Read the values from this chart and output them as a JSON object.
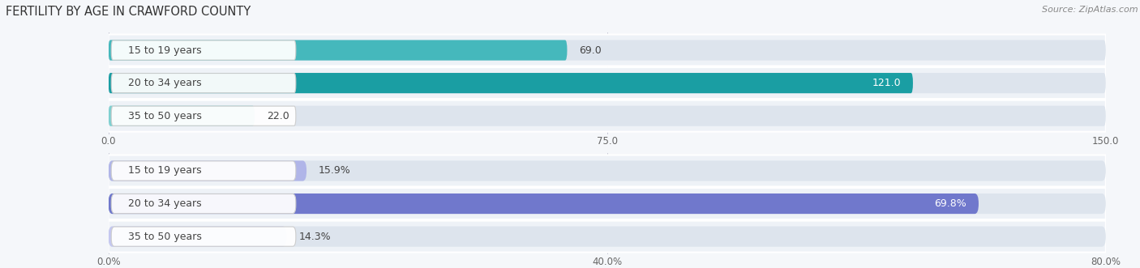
{
  "title": "FERTILITY BY AGE IN CRAWFORD COUNTY",
  "source": "Source: ZipAtlas.com",
  "top_bars": {
    "categories": [
      "15 to 19 years",
      "20 to 34 years",
      "35 to 50 years"
    ],
    "values": [
      69.0,
      121.0,
      22.0
    ],
    "xlim": [
      0,
      150
    ],
    "xticks": [
      0.0,
      75.0,
      150.0
    ],
    "xtick_labels": [
      "0.0",
      "75.0",
      "150.0"
    ],
    "bar_colors": [
      "#45b8bc",
      "#1a9ea3",
      "#7fd0d0"
    ],
    "value_inside": [
      false,
      true,
      false
    ],
    "value_colors_inside": [
      "#333333",
      "#ffffff",
      "#333333"
    ]
  },
  "bottom_bars": {
    "categories": [
      "15 to 19 years",
      "20 to 34 years",
      "35 to 50 years"
    ],
    "values": [
      15.9,
      69.8,
      14.3
    ],
    "xlim": [
      0,
      80
    ],
    "xticks": [
      0.0,
      40.0,
      80.0
    ],
    "xtick_labels": [
      "0.0%",
      "40.0%",
      "80.0%"
    ],
    "bar_colors": [
      "#b0b5e8",
      "#7078cc",
      "#c5c8f0"
    ],
    "value_inside": [
      false,
      true,
      false
    ],
    "value_colors_inside": [
      "#333333",
      "#ffffff",
      "#333333"
    ]
  },
  "row_bg_color": "#eef2f7",
  "row_sep_color": "#ffffff",
  "bar_track_color": "#dde4ed",
  "bg_color": "#f5f7fa",
  "title_fontsize": 10.5,
  "source_fontsize": 8,
  "label_fontsize": 9,
  "value_fontsize": 9,
  "tick_fontsize": 8.5
}
